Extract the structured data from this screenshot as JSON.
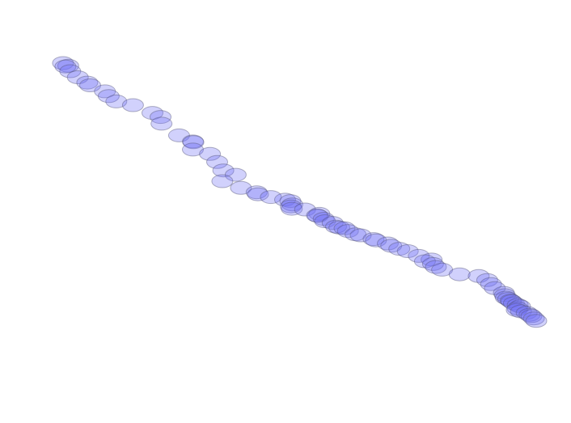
{
  "chart_data": {
    "type": "scatter",
    "title": "",
    "xlabel": "",
    "ylabel": "",
    "axes_visible": false,
    "grid": false,
    "legend": "none",
    "xlim": [
      0,
      100
    ],
    "ylim": [
      0,
      100
    ],
    "marker": {
      "shape": "ellipse",
      "fill": "#6f6ff5",
      "fill_opacity": 0.32,
      "stroke": "#555577",
      "stroke_opacity": 0.45
    },
    "series": [
      {
        "points": [
          [
            0.5,
            0.0
          ],
          [
            1.6,
            0.8
          ],
          [
            1.0,
            1.0
          ],
          [
            2.0,
            2.4
          ],
          [
            3.6,
            4.2
          ],
          [
            5.6,
            5.8
          ],
          [
            6.2,
            6.6
          ],
          [
            9.3,
            8.4
          ],
          [
            10.1,
            9.8
          ],
          [
            11.7,
            11.4
          ],
          [
            15.2,
            12.5
          ],
          [
            19.3,
            14.8
          ],
          [
            21.0,
            16.0
          ],
          [
            21.2,
            18.0
          ],
          [
            24.9,
            21.5
          ],
          [
            27.8,
            23.3
          ],
          [
            27.9,
            23.5
          ],
          [
            27.8,
            25.7
          ],
          [
            31.4,
            27.0
          ],
          [
            32.9,
            29.4
          ],
          [
            34.2,
            31.9
          ],
          [
            36.8,
            33.2
          ],
          [
            34.0,
            35.1
          ],
          [
            37.9,
            37.1
          ],
          [
            41.2,
            38.4
          ],
          [
            41.5,
            39.0
          ],
          [
            44.2,
            39.8
          ],
          [
            47.2,
            40.6
          ],
          [
            48.3,
            41.0
          ],
          [
            48.7,
            42.0
          ],
          [
            48.4,
            42.6
          ],
          [
            48.6,
            43.3
          ],
          [
            51.4,
            43.5
          ],
          [
            54.4,
            44.8
          ],
          [
            54.1,
            45.4
          ],
          [
            53.9,
            45.3
          ],
          [
            55.3,
            46.3
          ],
          [
            55.6,
            47.0
          ],
          [
            57.2,
            47.5
          ],
          [
            57.9,
            48.6
          ],
          [
            58.6,
            48.9
          ],
          [
            59.7,
            49.1
          ],
          [
            60.4,
            49.9
          ],
          [
            62.0,
            50.9
          ],
          [
            63.1,
            51.2
          ],
          [
            65.8,
            52.3
          ],
          [
            66.3,
            52.7
          ],
          [
            68.8,
            53.6
          ],
          [
            69.5,
            54.3
          ],
          [
            71.2,
            55.2
          ],
          [
            73.0,
            55.9
          ],
          [
            75.3,
            57.3
          ],
          [
            78.0,
            58.4
          ],
          [
            76.6,
            58.9
          ],
          [
            78.3,
            59.7
          ],
          [
            78.9,
            60.6
          ],
          [
            80.2,
            61.4
          ],
          [
            83.9,
            62.8
          ],
          [
            87.9,
            63.3
          ],
          [
            89.7,
            64.5
          ],
          [
            90.5,
            65.7
          ],
          [
            91.3,
            66.9
          ],
          [
            93.2,
            68.3
          ],
          [
            93.4,
            69.0
          ],
          [
            93.6,
            69.7
          ],
          [
            94.1,
            70.1
          ],
          [
            94.6,
            70.6
          ],
          [
            94.8,
            70.8
          ],
          [
            95.3,
            71.4
          ],
          [
            96.1,
            71.9
          ],
          [
            96.6,
            72.3
          ],
          [
            96.1,
            72.9
          ],
          [
            95.9,
            73.4
          ],
          [
            96.8,
            73.8
          ],
          [
            98.0,
            74.2
          ],
          [
            98.6,
            74.8
          ],
          [
            99.0,
            75.2
          ],
          [
            99.5,
            75.9
          ],
          [
            100.0,
            76.6
          ]
        ]
      }
    ]
  }
}
